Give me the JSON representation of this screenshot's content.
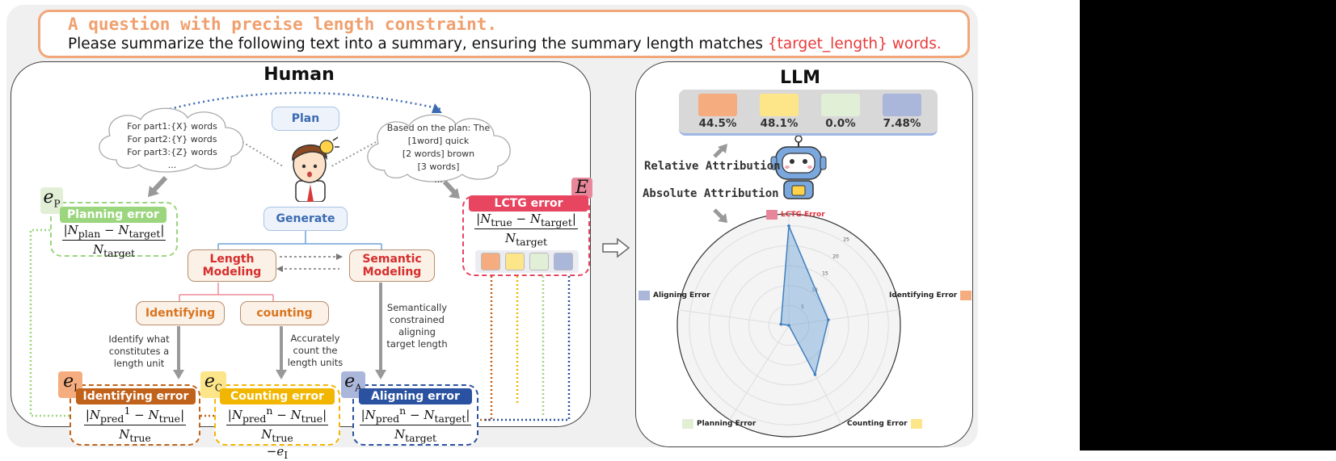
{
  "question": {
    "title": "A question with precise length constraint.",
    "text_prefix": "Please summarize the following text into a summary, ensuring the summary length matches",
    "text_highlight": "{target_length} words."
  },
  "human": {
    "title": "Human",
    "plan_label": "Plan",
    "generate_label": "Generate",
    "cloud_left": [
      "For part1:{X} words",
      "For part2:{Y} words",
      "For part3:{Z} words",
      "..."
    ],
    "cloud_right": [
      "Based on the plan: The",
      "[1word] quick",
      "[2 words] brown",
      "[3 words]",
      "..."
    ],
    "length_modeling": "Length Modeling",
    "semantic_modeling": "Semantic Modeling",
    "identifying": "Identifying",
    "counting": "counting",
    "desc_identify": "Identify what constitutes a length unit",
    "desc_count": "Accurately count the length units",
    "desc_semantic": "Semantically constrained aligning target length",
    "planning_error": "Planning error",
    "identifying_error": "Identifying error",
    "counting_error": "Counting error",
    "aligning_error": "Aligning error",
    "lctg_error": "LCTG error"
  },
  "llm": {
    "title": "LLM",
    "bars": [
      {
        "value": "44.5%",
        "color": "#f5ad7f"
      },
      {
        "value": "48.1%",
        "color": "#fde58a"
      },
      {
        "value": "0.0%",
        "color": "#e2efd7"
      },
      {
        "value": "7.48%",
        "color": "#aab6da"
      }
    ],
    "relative_attribution": "Relative Attribution",
    "absolute_attribution": "Absolute Attribution",
    "radar": {
      "legend_top": "LCTG Error",
      "axes": [
        "Identifying Error",
        "Counting Error",
        "Planning Error",
        "Aligning Error"
      ],
      "ticks": [
        "5",
        "10",
        "15",
        "20",
        "25"
      ],
      "values": {
        "top": 25,
        "identifying": 10,
        "counting": 14,
        "planning": 0,
        "aligning": 2
      },
      "colors": {
        "lctg": "#e8869a",
        "identifying": "#f5ad7f",
        "counting": "#fde58a",
        "planning": "#e2efd7",
        "aligning": "#aab6da",
        "fill": "#6ea3d6"
      }
    }
  },
  "colors": {
    "orange": "#f0a06e",
    "red": "#e34a5b",
    "green": "#9bd67e",
    "brown": "#c0621a",
    "yellow": "#f2b600",
    "blue": "#2b52a0",
    "lctg": "#e84560"
  }
}
